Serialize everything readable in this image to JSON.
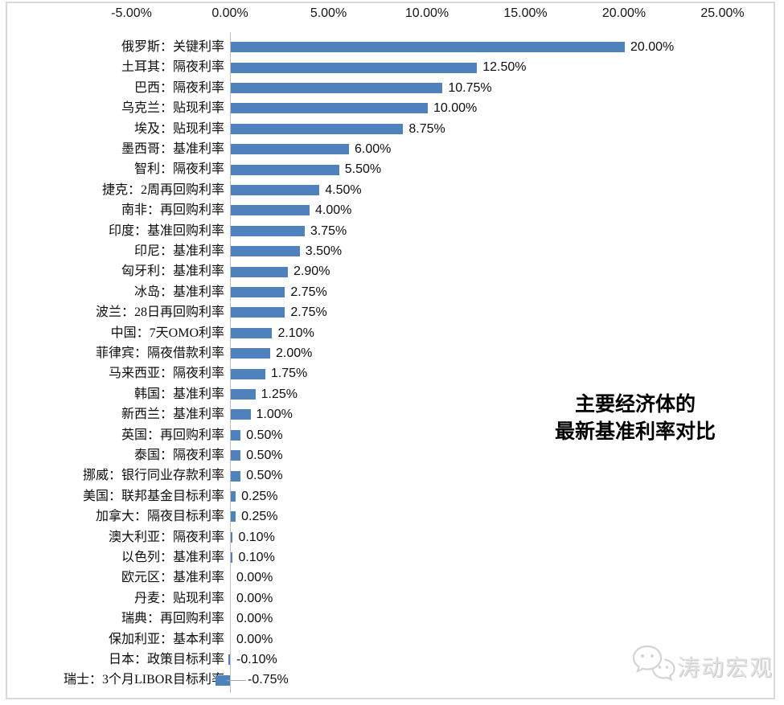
{
  "chart_data": {
    "type": "bar",
    "orientation": "horizontal",
    "title_lines": [
      "主要经济体的",
      "最新基准利率对比"
    ],
    "x_axis": {
      "position": "top",
      "range": [
        -5,
        25
      ],
      "ticks": [
        "-5.00%",
        "0.00%",
        "5.00%",
        "10.00%",
        "15.00%",
        "20.00%",
        "25.00%"
      ],
      "tick_values": [
        -5,
        0,
        5,
        10,
        15,
        20,
        25
      ],
      "grid": false
    },
    "categories": [
      "俄罗斯：关键利率",
      "土耳其：隔夜利率",
      "巴西：隔夜利率",
      "乌克兰：贴现利率",
      "埃及：贴现利率",
      "墨西哥：基准利率",
      "智利：隔夜利率",
      "捷克：2周再回购利率",
      "南非：再回购利率",
      "印度：基准回购利率",
      "印尼：基准利率",
      "匈牙利：基准利率",
      "冰岛：基准利率",
      "波兰：28日再回购利率",
      "中国：7天OMO利率",
      "菲律宾：隔夜借款利率",
      "马来西亚：隔夜利率",
      "韩国：基准利率",
      "新西兰：基准利率",
      "英国：再回购利率",
      "泰国：隔夜利率",
      "挪威：银行同业存款利率",
      "美国：联邦基金目标利率",
      "加拿大：隔夜目标利率",
      "澳大利亚：隔夜利率",
      "以色列：基准利率",
      "欧元区：基准利率",
      "丹麦：贴现利率",
      "瑞典：再回购利率",
      "保加利亚：基本利率",
      "日本：政策目标利率",
      "瑞士：3个月LIBOR目标利率"
    ],
    "values": [
      20.0,
      12.5,
      10.75,
      10.0,
      8.75,
      6.0,
      5.5,
      4.5,
      4.0,
      3.75,
      3.5,
      2.9,
      2.75,
      2.75,
      2.1,
      2.0,
      1.75,
      1.25,
      1.0,
      0.5,
      0.5,
      0.5,
      0.25,
      0.25,
      0.1,
      0.1,
      0.0,
      0.0,
      0.0,
      0.0,
      -0.1,
      -0.75
    ],
    "value_labels": [
      "20.00%",
      "12.50%",
      "10.75%",
      "10.00%",
      "8.75%",
      "6.00%",
      "5.50%",
      "4.50%",
      "4.00%",
      "3.75%",
      "3.50%",
      "2.90%",
      "2.75%",
      "2.75%",
      "2.10%",
      "2.00%",
      "1.75%",
      "1.25%",
      "1.00%",
      "0.50%",
      "0.50%",
      "0.50%",
      "0.25%",
      "0.25%",
      "0.10%",
      "0.10%",
      "0.00%",
      "0.00%",
      "0.00%",
      "0.00%",
      "-0.10%",
      "-0.75%"
    ],
    "legend": "none",
    "colors": {
      "bar": "#4F81BD",
      "axis_line": "#BFBFBF",
      "leader_line": "#A6A6A6",
      "border": "#D9D9D9",
      "text": "#0D0D0D"
    }
  },
  "watermark": {
    "icon": "wechat-chat-bubbles-icon",
    "text": "涛动宏观",
    "color": "#E2E2E2"
  }
}
